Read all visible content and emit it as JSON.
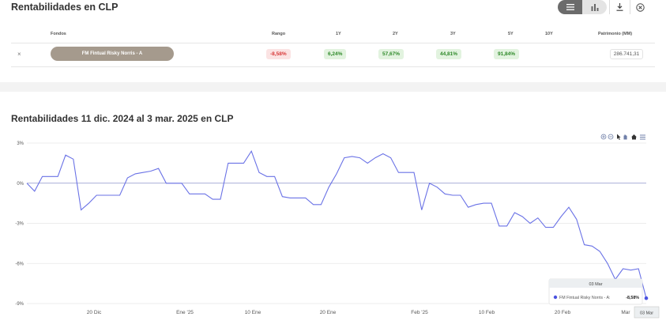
{
  "header": {
    "title": "Rentabilidades en CLP"
  },
  "toolbar": {
    "toggle": [
      {
        "icon": "list-icon",
        "active": true
      },
      {
        "icon": "bar-chart-icon",
        "active": false
      }
    ],
    "download_icon": "download-icon",
    "close_icon": "close-circle-icon"
  },
  "table": {
    "columns": [
      "Fondos",
      "Rango",
      "1Y",
      "2Y",
      "3Y",
      "5Y",
      "10Y",
      "Patrimonio (MM)"
    ],
    "row": {
      "remove_label": "×",
      "fund": "FM Fintual Risky Norris - A",
      "rango": "-8,58%",
      "y1": "6,24%",
      "y2": "57,67%",
      "y3": "44,81%",
      "y5": "91,84%",
      "y10": "",
      "patrimonio": "286.741,31"
    },
    "colors": {
      "negative": "#d83a3a",
      "positive": "#2f8a2a",
      "fund_pill": "#a59a8d"
    }
  },
  "chart_section": {
    "title": "Rentabilidades 11 dic. 2024 al 3 mar. 2025 en CLP"
  },
  "chart_data": {
    "type": "line",
    "title": "Rentabilidades 11 dic. 2024 al 3 mar. 2025 en CLP",
    "xlabel": "",
    "ylabel": "",
    "ylim": [
      -9,
      3
    ],
    "y_ticks": [
      "3%",
      "0%",
      "-3%",
      "-6%",
      "-9%"
    ],
    "x_ticks": [
      "20 Dic",
      "Ene '25",
      "10 Ene",
      "20 Ene",
      "Feb '25",
      "10 Feb",
      "20 Feb",
      "Mar"
    ],
    "grid": true,
    "color": "#6a72e6",
    "series": [
      {
        "name": "FM Fintual Risky Norris - A",
        "values": [
          0.0,
          -0.6,
          0.5,
          0.5,
          0.5,
          2.1,
          1.8,
          -2.0,
          -1.5,
          -0.9,
          -0.9,
          -0.9,
          -0.9,
          0.4,
          0.7,
          0.8,
          0.9,
          1.1,
          0.0,
          0.0,
          0.0,
          -0.8,
          -0.8,
          -0.8,
          -1.2,
          -1.2,
          1.5,
          1.5,
          1.5,
          2.4,
          0.8,
          0.5,
          0.5,
          -1.0,
          -1.1,
          -1.1,
          -1.1,
          -1.6,
          -1.6,
          -0.3,
          0.7,
          1.9,
          2.0,
          1.9,
          1.5,
          1.9,
          2.2,
          1.9,
          0.8,
          0.8,
          0.8,
          -2.0,
          0.0,
          -0.3,
          -0.8,
          -0.9,
          -0.9,
          -1.8,
          -1.6,
          -1.5,
          -1.5,
          -3.2,
          -3.2,
          -2.2,
          -2.5,
          -3.0,
          -2.6,
          -3.3,
          -3.3,
          -2.5,
          -1.8,
          -2.7,
          -4.6,
          -4.7,
          -5.1,
          -6.0,
          -7.2,
          -6.4,
          -6.5,
          -6.4,
          -8.6
        ]
      }
    ],
    "tooltip": {
      "date": "03 Mar",
      "series_name": "FM Fintual Risky Norris - A:",
      "value": "-8,58%"
    },
    "crosshair_label": "03 Mar",
    "toolbar_icons": [
      "zoom-in-icon",
      "zoom-out-icon",
      "selection-cursor-icon",
      "pan-hand-icon",
      "home-icon",
      "menu-icon"
    ]
  }
}
